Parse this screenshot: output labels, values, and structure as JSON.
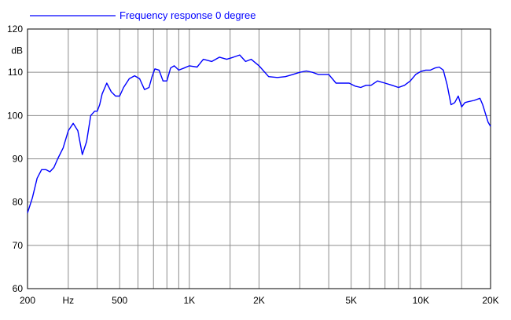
{
  "chart_data": {
    "type": "line",
    "title": "",
    "xlabel": "Hz",
    "ylabel": "dB",
    "x_scale": "log",
    "xlim": [
      200,
      20000
    ],
    "ylim": [
      60,
      120
    ],
    "grid": true,
    "legend_position": "top-left",
    "x_ticks": [
      {
        "value": 200,
        "label": "200"
      },
      {
        "value": 300,
        "label": ""
      },
      {
        "value": 400,
        "label": ""
      },
      {
        "value": 500,
        "label": "500"
      },
      {
        "value": 600,
        "label": ""
      },
      {
        "value": 700,
        "label": ""
      },
      {
        "value": 800,
        "label": ""
      },
      {
        "value": 900,
        "label": ""
      },
      {
        "value": 1000,
        "label": "1K"
      },
      {
        "value": 1500,
        "label": ""
      },
      {
        "value": 2000,
        "label": "2K"
      },
      {
        "value": 3000,
        "label": ""
      },
      {
        "value": 4000,
        "label": ""
      },
      {
        "value": 5000,
        "label": "5K"
      },
      {
        "value": 6000,
        "label": ""
      },
      {
        "value": 7000,
        "label": ""
      },
      {
        "value": 8000,
        "label": ""
      },
      {
        "value": 9000,
        "label": ""
      },
      {
        "value": 10000,
        "label": "10K"
      },
      {
        "value": 15000,
        "label": ""
      },
      {
        "value": 20000,
        "label": "20K"
      }
    ],
    "y_ticks": [
      60,
      70,
      80,
      90,
      100,
      110,
      120
    ],
    "series": [
      {
        "name": "Frequency response 0 degree",
        "color": "#0000ff",
        "x": [
          200,
          210,
          220,
          230,
          240,
          250,
          260,
          270,
          285,
          300,
          315,
          330,
          345,
          360,
          375,
          390,
          400,
          410,
          420,
          440,
          460,
          480,
          500,
          520,
          550,
          580,
          610,
          640,
          670,
          690,
          710,
          740,
          770,
          800,
          830,
          860,
          900,
          950,
          1000,
          1080,
          1150,
          1250,
          1350,
          1450,
          1550,
          1650,
          1750,
          1850,
          2000,
          2200,
          2400,
          2600,
          2800,
          3000,
          3200,
          3400,
          3600,
          3800,
          4000,
          4300,
          4600,
          4900,
          5200,
          5500,
          5800,
          6100,
          6500,
          7000,
          7500,
          8000,
          8500,
          9000,
          9500,
          10000,
          10500,
          11000,
          11500,
          12000,
          12500,
          13000,
          13500,
          14000,
          14500,
          15000,
          15500,
          16000,
          17000,
          18000,
          18500,
          19000,
          19500,
          20000
        ],
        "y": [
          77.5,
          81,
          85.5,
          87.5,
          87.5,
          87,
          88,
          90,
          92.5,
          96.5,
          98.2,
          96.5,
          91,
          94,
          100,
          101,
          101,
          102.5,
          105,
          107.5,
          105.5,
          104.5,
          104.5,
          106.5,
          108.5,
          109.2,
          108.5,
          106,
          106.5,
          109,
          110.8,
          110.5,
          108,
          108,
          111,
          111.5,
          110.5,
          111,
          111.5,
          111.2,
          113,
          112.5,
          113.5,
          113,
          113.5,
          114,
          112.5,
          113,
          111.5,
          109,
          108.8,
          109,
          109.5,
          110,
          110.3,
          110,
          109.5,
          109.5,
          109.5,
          107.5,
          107.5,
          107.5,
          106.8,
          106.5,
          107,
          107,
          108,
          107.5,
          107,
          106.5,
          107,
          108,
          109.5,
          110.2,
          110.5,
          110.5,
          111,
          111.2,
          110.5,
          107,
          102.5,
          103,
          104.5,
          102,
          103,
          103.2,
          103.5,
          104,
          102.5,
          100.5,
          98.5,
          97.5
        ]
      }
    ]
  }
}
